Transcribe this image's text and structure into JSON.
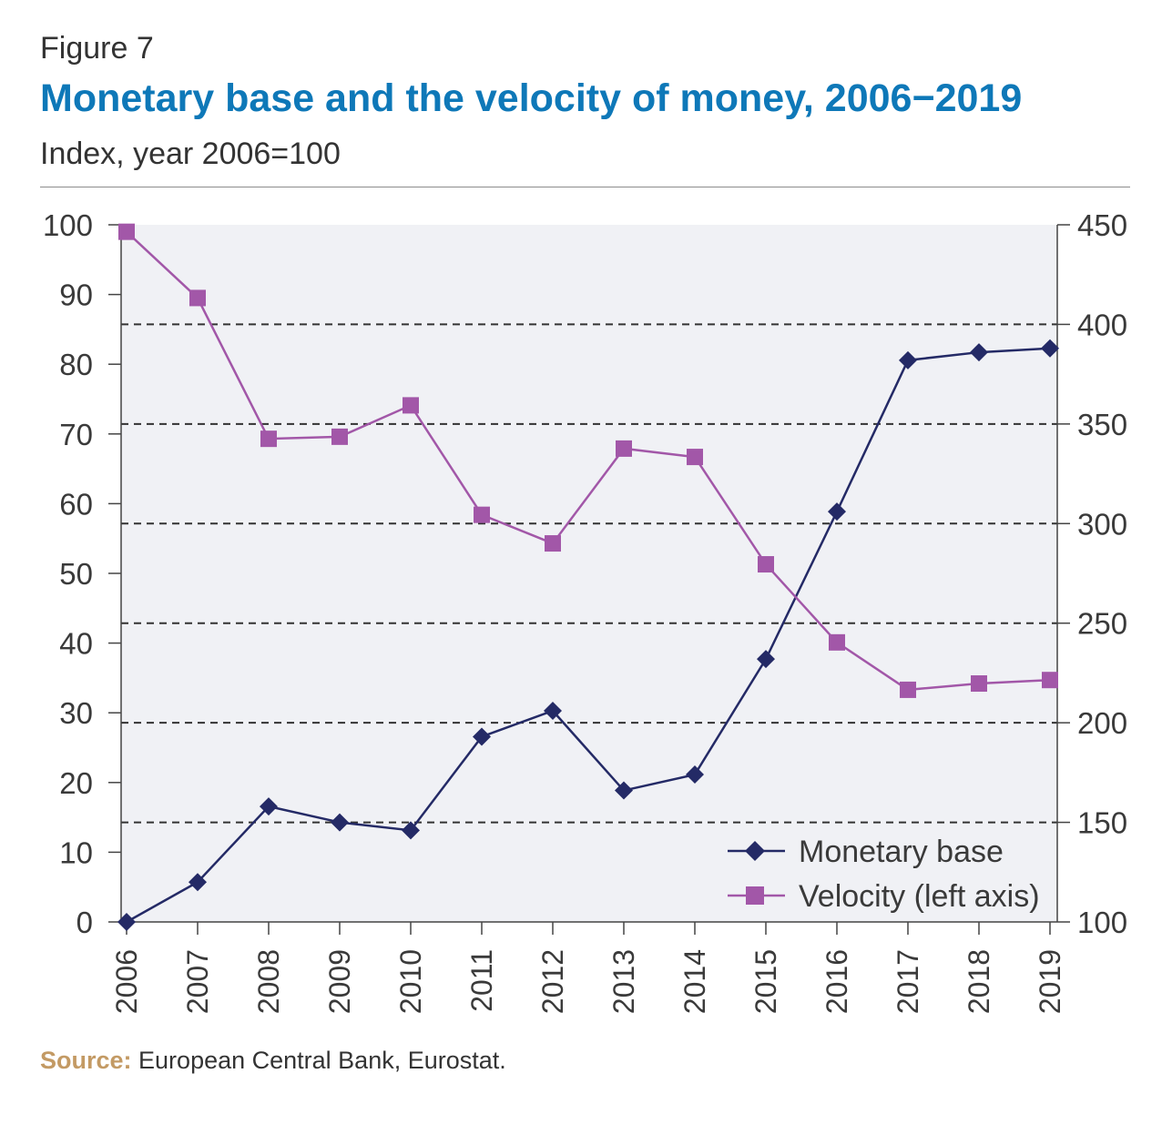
{
  "figure_label": "Figure 7",
  "title": "Monetary base and the velocity of money, 2006−2019",
  "subtitle": "Index, year 2006=100",
  "source_label": "Source:",
  "source_text": " European Central Bank, Eurostat.",
  "chart_data": {
    "type": "line",
    "x": [
      "2006",
      "2007",
      "2008",
      "2009",
      "2010",
      "2011",
      "2012",
      "2013",
      "2014",
      "2015",
      "2016",
      "2017",
      "2018",
      "2019"
    ],
    "left_axis": {
      "range": [
        0,
        100
      ],
      "ticks": [
        0,
        10,
        20,
        30,
        40,
        50,
        60,
        70,
        80,
        90,
        100
      ]
    },
    "right_axis": {
      "range": [
        100,
        450
      ],
      "ticks": [
        100,
        150,
        200,
        250,
        300,
        350,
        400,
        450
      ]
    },
    "grid": "dashed horizontal at right-axis ticks",
    "legend_placement": "bottom-right",
    "series": [
      {
        "name": "Monetary base",
        "axis": "right",
        "color": "#242a66",
        "marker": "diamond",
        "values": [
          100,
          120,
          158,
          150,
          146,
          193,
          206,
          166,
          174,
          232,
          306,
          382,
          386,
          388
        ]
      },
      {
        "name": "Velocity (left axis)",
        "axis": "left",
        "color": "#a257a8",
        "marker": "square",
        "values": [
          99,
          89.5,
          69.3,
          69.6,
          74.1,
          58.4,
          54.3,
          67.9,
          66.7,
          51.3,
          40.1,
          33.3,
          34.2,
          34.7
        ]
      }
    ]
  }
}
